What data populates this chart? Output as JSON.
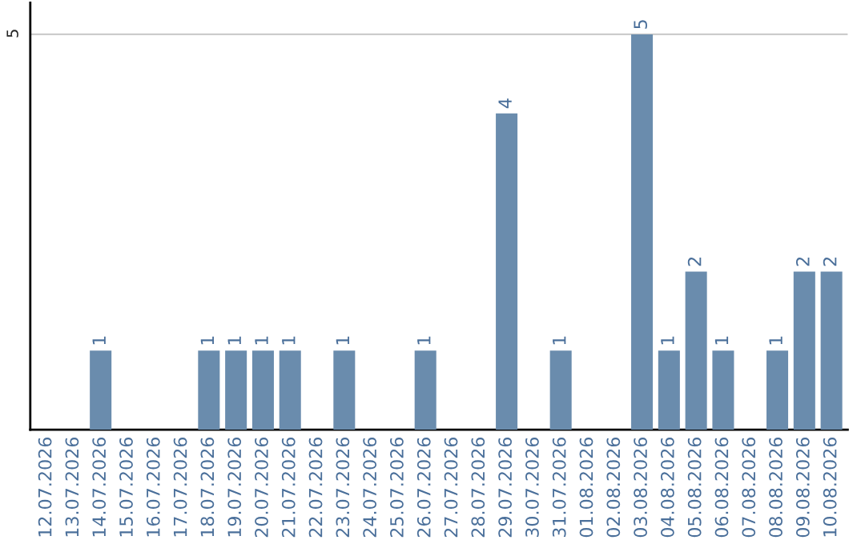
{
  "chart_data": {
    "type": "bar",
    "categories": [
      "12.07.2026",
      "13.07.2026",
      "14.07.2026",
      "15.07.2026",
      "16.07.2026",
      "17.07.2026",
      "18.07.2026",
      "19.07.2026",
      "20.07.2026",
      "21.07.2026",
      "22.07.2026",
      "23.07.2026",
      "24.07.2026",
      "25.07.2026",
      "26.07.2026",
      "27.07.2026",
      "28.07.2026",
      "29.07.2026",
      "30.07.2026",
      "31.07.2026",
      "01.08.2026",
      "02.08.2026",
      "03.08.2026",
      "04.08.2026",
      "05.08.2026",
      "06.08.2026",
      "07.08.2026",
      "08.08.2026",
      "09.08.2026",
      "10.08.2026"
    ],
    "values": [
      0,
      0,
      1,
      0,
      0,
      0,
      1,
      1,
      1,
      1,
      0,
      1,
      0,
      0,
      1,
      0,
      0,
      4,
      0,
      1,
      0,
      0,
      5,
      1,
      2,
      1,
      0,
      1,
      2,
      2
    ],
    "value_labels": [
      null,
      null,
      "1",
      null,
      null,
      null,
      "1",
      "1",
      "1",
      "1",
      null,
      "1",
      null,
      null,
      "1",
      null,
      null,
      "4",
      null,
      "1",
      null,
      null,
      "5",
      "1",
      "2",
      "1",
      null,
      "1",
      "2",
      "2"
    ],
    "color": "#6a8cad",
    "ylim": [
      0,
      5.4
    ],
    "yticks": [
      5
    ],
    "grid": "y"
  }
}
